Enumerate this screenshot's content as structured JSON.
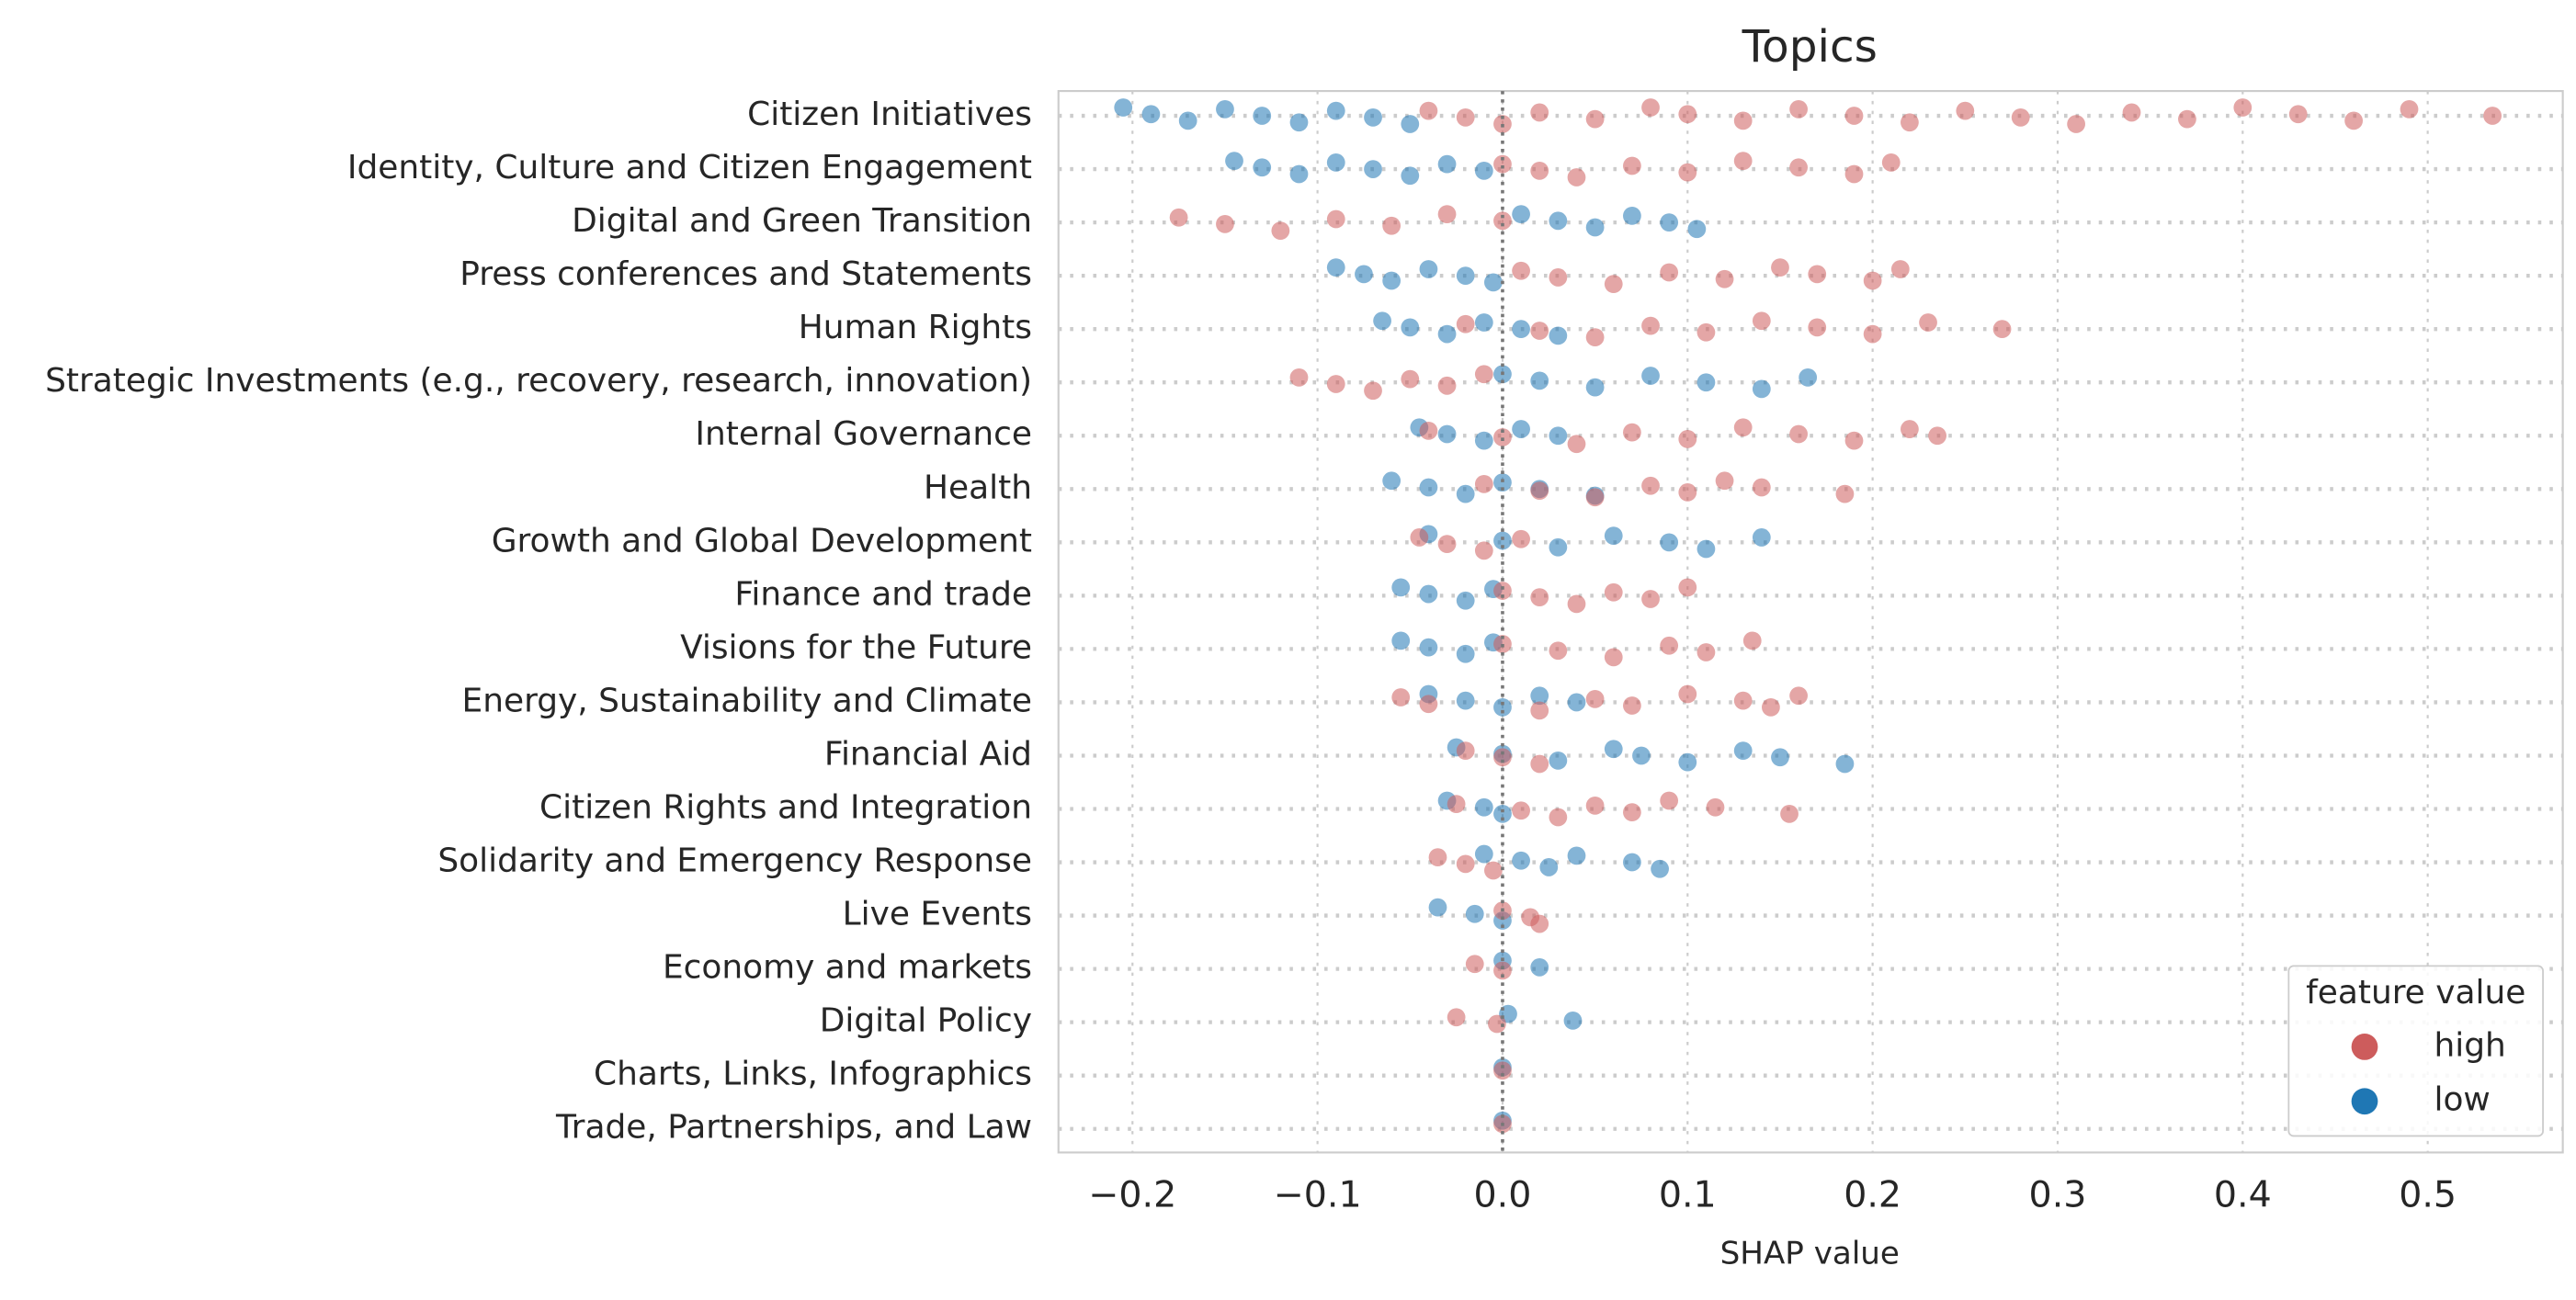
{
  "chart_data": {
    "type": "strip",
    "title": "Topics",
    "x_label": "SHAP value",
    "categories": [
      "Citizen Initiatives",
      "Identity, Culture and Citizen Engagement",
      "Digital and Green Transition",
      "Press conferences and Statements",
      "Human Rights",
      "Strategic Investments (e.g., recovery, research, innovation)",
      "Internal Governance",
      "Health",
      "Growth and Global Development",
      "Finance and trade",
      "Visions for the Future",
      "Energy, Sustainability and Climate",
      "Financial Aid",
      "Citizen Rights and Integration",
      "Solidarity and Emergency Response",
      "Live Events",
      "Economy and markets",
      "Digital Policy",
      "Charts, Links, Infographics",
      "Trade, Partnerships, and Law"
    ],
    "series": [
      {
        "name": "low",
        "color": "#1f77b4",
        "values": [
          [
            -0.205,
            -0.19,
            -0.17,
            -0.15,
            -0.13,
            -0.11,
            -0.09,
            -0.07,
            -0.05
          ],
          [
            -0.145,
            -0.13,
            -0.11,
            -0.09,
            -0.07,
            -0.05,
            -0.03,
            -0.01
          ],
          [
            0.01,
            0.03,
            0.05,
            0.07,
            0.09,
            0.105
          ],
          [
            -0.09,
            -0.075,
            -0.06,
            -0.04,
            -0.02,
            -0.005
          ],
          [
            -0.065,
            -0.05,
            -0.03,
            -0.01,
            0.01,
            0.03
          ],
          [
            0.0,
            0.02,
            0.05,
            0.08,
            0.11,
            0.14,
            0.165
          ],
          [
            -0.045,
            -0.03,
            -0.01,
            0.01,
            0.03
          ],
          [
            -0.06,
            -0.04,
            -0.02,
            0.0,
            0.02,
            0.05
          ],
          [
            -0.04,
            0.0,
            0.03,
            0.06,
            0.09,
            0.11,
            0.14
          ],
          [
            -0.055,
            -0.04,
            -0.02,
            -0.005
          ],
          [
            -0.055,
            -0.04,
            -0.02,
            -0.005
          ],
          [
            -0.04,
            -0.02,
            0.0,
            0.02,
            0.04
          ],
          [
            -0.025,
            0.0,
            0.03,
            0.06,
            0.075,
            0.1,
            0.13,
            0.15,
            0.185
          ],
          [
            -0.03,
            -0.01,
            0.0
          ],
          [
            -0.01,
            0.01,
            0.025,
            0.04,
            0.07,
            0.085
          ],
          [
            -0.035,
            -0.015,
            0.0
          ],
          [
            0.0,
            0.02
          ],
          [
            0.003,
            0.038
          ],
          [
            0.0
          ],
          [
            0.0
          ]
        ]
      },
      {
        "name": "high",
        "color": "#cd5c5c",
        "values": [
          [
            -0.04,
            -0.02,
            0.0,
            0.02,
            0.05,
            0.08,
            0.1,
            0.13,
            0.16,
            0.19,
            0.22,
            0.25,
            0.28,
            0.31,
            0.34,
            0.37,
            0.4,
            0.43,
            0.46,
            0.49,
            0.535
          ],
          [
            0.0,
            0.02,
            0.04,
            0.07,
            0.1,
            0.13,
            0.16,
            0.19,
            0.21
          ],
          [
            -0.175,
            -0.15,
            -0.12,
            -0.09,
            -0.06,
            -0.03,
            0.0
          ],
          [
            0.01,
            0.03,
            0.06,
            0.09,
            0.12,
            0.15,
            0.17,
            0.2,
            0.215
          ],
          [
            -0.02,
            0.02,
            0.05,
            0.08,
            0.11,
            0.14,
            0.17,
            0.2,
            0.23,
            0.27
          ],
          [
            -0.11,
            -0.09,
            -0.07,
            -0.05,
            -0.03,
            -0.01
          ],
          [
            -0.04,
            0.0,
            0.04,
            0.07,
            0.1,
            0.13,
            0.16,
            0.19,
            0.22,
            0.235
          ],
          [
            -0.01,
            0.02,
            0.05,
            0.08,
            0.1,
            0.12,
            0.14,
            0.185
          ],
          [
            -0.045,
            -0.03,
            -0.01,
            0.01
          ],
          [
            0.0,
            0.02,
            0.04,
            0.06,
            0.08,
            0.1
          ],
          [
            0.0,
            0.03,
            0.06,
            0.09,
            0.11,
            0.135
          ],
          [
            -0.055,
            -0.04,
            0.02,
            0.05,
            0.07,
            0.1,
            0.13,
            0.145,
            0.16
          ],
          [
            -0.02,
            0.0,
            0.02
          ],
          [
            -0.025,
            0.01,
            0.03,
            0.05,
            0.07,
            0.09,
            0.115,
            0.155
          ],
          [
            -0.035,
            -0.02,
            -0.005
          ],
          [
            0.0,
            0.015,
            0.02
          ],
          [
            -0.015,
            0.0
          ],
          [
            -0.025,
            -0.003
          ],
          [
            0.0
          ],
          [
            0.0
          ]
        ]
      }
    ],
    "xlim": [
      -0.24,
      0.573
    ],
    "xticks": [
      {
        "value": -0.2,
        "label": "−0.2"
      },
      {
        "value": -0.1,
        "label": "−0.1"
      },
      {
        "value": 0,
        "label": "0.0"
      },
      {
        "value": 0.1,
        "label": "0.1"
      },
      {
        "value": 0.2,
        "label": "0.2"
      },
      {
        "value": 0.3,
        "label": "0.3"
      },
      {
        "value": 0.4,
        "label": "0.4"
      },
      {
        "value": 0.5,
        "label": "0.5"
      }
    ],
    "grid": true,
    "legend_title": "feature value",
    "legend_position": "lower right"
  }
}
